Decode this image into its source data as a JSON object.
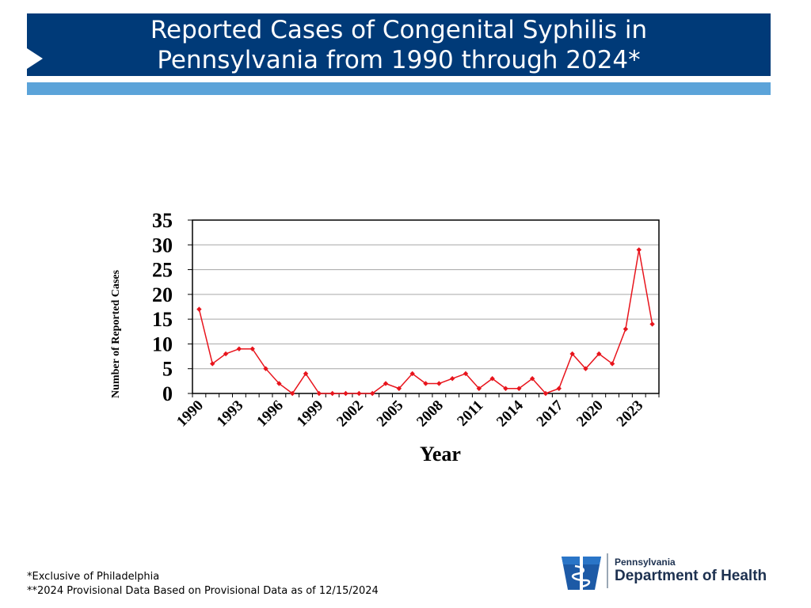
{
  "page": {
    "title_line1": "Reported Cases of Congenital Syphilis in",
    "title_line2": "Pennsylvania from 1990 through 2024*",
    "footnote1": "*Exclusive of Philadelphia",
    "footnote2": "**2024 Provisional Data Based on Provisional Data as of 12/15/2024",
    "logo_state": "Pennsylvania",
    "logo_department": "Department of Health"
  },
  "colors": {
    "banner": "#003a78",
    "accent_bar": "#5ba3d9",
    "series": "#e8141c",
    "gridline": "#a6a6a6"
  },
  "chart_data": {
    "type": "line",
    "title": "",
    "xlabel": "Year",
    "ylabel": "Number of Reported Cases",
    "x": [
      1990,
      1991,
      1992,
      1993,
      1994,
      1995,
      1996,
      1997,
      1998,
      1999,
      2000,
      2001,
      2002,
      2003,
      2004,
      2005,
      2006,
      2007,
      2008,
      2009,
      2010,
      2011,
      2012,
      2013,
      2014,
      2015,
      2016,
      2017,
      2018,
      2019,
      2020,
      2021,
      2022,
      2023,
      2024
    ],
    "series": [
      {
        "name": "",
        "values": [
          17,
          6,
          8,
          9,
          9,
          5,
          2,
          0,
          4,
          0,
          0,
          0,
          0,
          0,
          2,
          1,
          4,
          2,
          2,
          3,
          4,
          1,
          3,
          1,
          1,
          3,
          0,
          1,
          8,
          5,
          8,
          6,
          13,
          29,
          14
        ]
      }
    ],
    "x_tick_labels": [
      "1990",
      "1993",
      "1996",
      "1999",
      "2002",
      "2005",
      "2008",
      "2011",
      "2014",
      "2017",
      "2020",
      "2023"
    ],
    "y_tick_labels": [
      "0",
      "5",
      "10",
      "15",
      "20",
      "25",
      "30",
      "35"
    ],
    "ylim": [
      0,
      35
    ],
    "xlim": [
      1990,
      2024
    ],
    "grid": "horizontal",
    "legend": "none",
    "marker": "diamond"
  }
}
